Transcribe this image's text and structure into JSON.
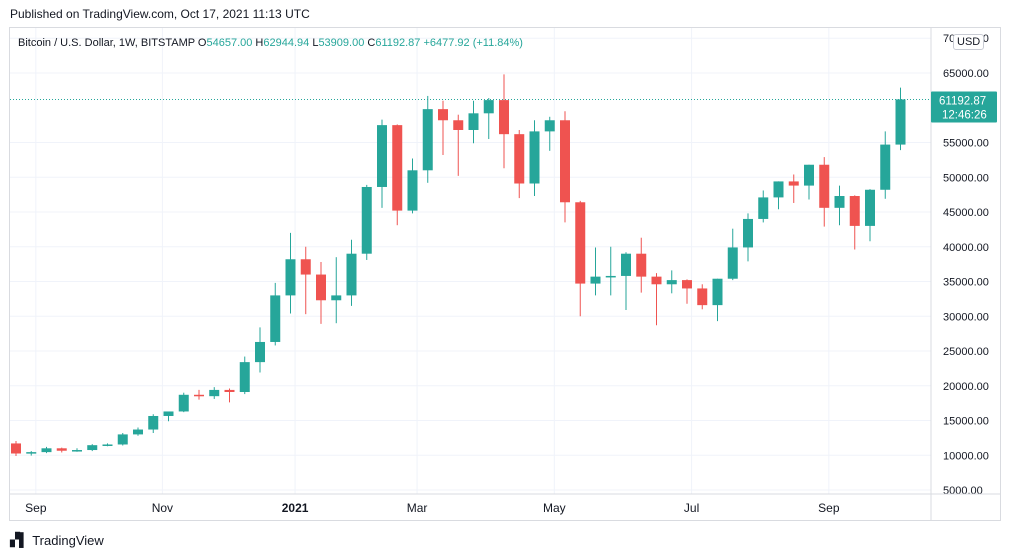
{
  "published_text": "Published on TradingView.com, Oct 17, 2021 11:13 UTC",
  "footer_brand": "TradingView",
  "currency_badge": "USD",
  "colors": {
    "up": "#26a69a",
    "down": "#ef5350",
    "grid": "#f0f3fa",
    "text": "#131722",
    "axis_border": "#d9dbe0"
  },
  "chart_data": {
    "type": "candlestick",
    "legend": {
      "symbol": "Bitcoin / U.S. Dollar, 1W, BITSTAMP",
      "open_label": "O",
      "open": "54657.00",
      "high_label": "H",
      "high": "62944.94",
      "low_label": "L",
      "low": "53909.00",
      "close_label": "C",
      "close": "61192.87",
      "change": "+6477.92 (+11.84%)"
    },
    "y_axis": {
      "ticks": [
        70000,
        65000,
        55000,
        50000,
        45000,
        40000,
        35000,
        30000,
        25000,
        20000,
        15000,
        10000,
        5000
      ],
      "tick_labels": [
        "70000.00",
        "65000.00",
        "55000.00",
        "50000.00",
        "45000.00",
        "40000.00",
        "35000.00",
        "30000.00",
        "25000.00",
        "20000.00",
        "15000.00",
        "10000.00",
        "5000.00"
      ],
      "range": [
        5000,
        70000
      ]
    },
    "x_axis": {
      "labels": [
        {
          "text": "Sep",
          "bar": 1.3,
          "bold": false
        },
        {
          "text": "Nov",
          "bar": 9.6,
          "bold": false
        },
        {
          "text": "2021",
          "bar": 18.3,
          "bold": true
        },
        {
          "text": "Mar",
          "bar": 26.3,
          "bold": false
        },
        {
          "text": "May",
          "bar": 35.3,
          "bold": false
        },
        {
          "text": "Jul",
          "bar": 44.3,
          "bold": false
        },
        {
          "text": "Sep",
          "bar": 53.3,
          "bold": false
        }
      ]
    },
    "last_price": {
      "label": "61192.87",
      "countdown": "12:46:26",
      "value": 61192.87
    },
    "candles": [
      {
        "o": 11700,
        "h": 12050,
        "l": 9900,
        "c": 10250
      },
      {
        "o": 10250,
        "h": 10600,
        "l": 9950,
        "c": 10450
      },
      {
        "o": 10450,
        "h": 11200,
        "l": 10300,
        "c": 11000
      },
      {
        "o": 11000,
        "h": 11100,
        "l": 10400,
        "c": 10650
      },
      {
        "o": 10650,
        "h": 11000,
        "l": 10500,
        "c": 10750
      },
      {
        "o": 10750,
        "h": 11600,
        "l": 10600,
        "c": 11450
      },
      {
        "o": 11450,
        "h": 11700,
        "l": 11300,
        "c": 11550
      },
      {
        "o": 11550,
        "h": 13200,
        "l": 11400,
        "c": 13000
      },
      {
        "o": 13000,
        "h": 14000,
        "l": 12800,
        "c": 13700
      },
      {
        "o": 13700,
        "h": 15900,
        "l": 13200,
        "c": 15650
      },
      {
        "o": 15650,
        "h": 16300,
        "l": 14900,
        "c": 16300
      },
      {
        "o": 16300,
        "h": 19000,
        "l": 16200,
        "c": 18700
      },
      {
        "o": 18700,
        "h": 19400,
        "l": 18000,
        "c": 18500
      },
      {
        "o": 18500,
        "h": 19800,
        "l": 18100,
        "c": 19400
      },
      {
        "o": 19400,
        "h": 19600,
        "l": 17600,
        "c": 19100
      },
      {
        "o": 19100,
        "h": 24200,
        "l": 18800,
        "c": 23400
      },
      {
        "o": 23400,
        "h": 28400,
        "l": 21900,
        "c": 26300
      },
      {
        "o": 26300,
        "h": 34800,
        "l": 25800,
        "c": 33000
      },
      {
        "o": 33000,
        "h": 42000,
        "l": 30400,
        "c": 38200
      },
      {
        "o": 38200,
        "h": 40000,
        "l": 30300,
        "c": 36000
      },
      {
        "o": 36000,
        "h": 37800,
        "l": 28900,
        "c": 32300
      },
      {
        "o": 32300,
        "h": 38500,
        "l": 29000,
        "c": 33000
      },
      {
        "o": 33000,
        "h": 41000,
        "l": 31500,
        "c": 39000
      },
      {
        "o": 39000,
        "h": 48900,
        "l": 38100,
        "c": 48600
      },
      {
        "o": 48600,
        "h": 58300,
        "l": 45600,
        "c": 57500
      },
      {
        "o": 57500,
        "h": 57600,
        "l": 43100,
        "c": 45200
      },
      {
        "o": 45200,
        "h": 52700,
        "l": 44800,
        "c": 51000
      },
      {
        "o": 51000,
        "h": 61700,
        "l": 49200,
        "c": 59800
      },
      {
        "o": 59800,
        "h": 61000,
        "l": 53200,
        "c": 58200
      },
      {
        "o": 58200,
        "h": 59000,
        "l": 50200,
        "c": 56800
      },
      {
        "o": 56800,
        "h": 61000,
        "l": 54900,
        "c": 59200
      },
      {
        "o": 59200,
        "h": 61400,
        "l": 55500,
        "c": 61100
      },
      {
        "o": 61100,
        "h": 64800,
        "l": 51300,
        "c": 56200
      },
      {
        "o": 56200,
        "h": 56800,
        "l": 47000,
        "c": 49100
      },
      {
        "o": 49100,
        "h": 58200,
        "l": 47300,
        "c": 56600
      },
      {
        "o": 56600,
        "h": 58700,
        "l": 53800,
        "c": 58200
      },
      {
        "o": 58200,
        "h": 59500,
        "l": 43500,
        "c": 46400
      },
      {
        "o": 46400,
        "h": 46600,
        "l": 30000,
        "c": 34700
      },
      {
        "o": 34700,
        "h": 39900,
        "l": 33000,
        "c": 35700
      },
      {
        "o": 35700,
        "h": 40000,
        "l": 33000,
        "c": 35800
      },
      {
        "o": 35800,
        "h": 39200,
        "l": 30900,
        "c": 39000
      },
      {
        "o": 39000,
        "h": 41300,
        "l": 33400,
        "c": 35700
      },
      {
        "o": 35700,
        "h": 36200,
        "l": 28700,
        "c": 34600
      },
      {
        "o": 34600,
        "h": 36600,
        "l": 33300,
        "c": 35200
      },
      {
        "o": 35200,
        "h": 35300,
        "l": 31800,
        "c": 34000
      },
      {
        "o": 34000,
        "h": 34600,
        "l": 31000,
        "c": 31600
      },
      {
        "o": 31600,
        "h": 35400,
        "l": 29300,
        "c": 35400
      },
      {
        "o": 35400,
        "h": 42600,
        "l": 35200,
        "c": 39900
      },
      {
        "o": 39900,
        "h": 44800,
        "l": 37900,
        "c": 44000
      },
      {
        "o": 44000,
        "h": 48100,
        "l": 43500,
        "c": 47100
      },
      {
        "o": 47100,
        "h": 49400,
        "l": 45400,
        "c": 49400
      },
      {
        "o": 49400,
        "h": 50400,
        "l": 46300,
        "c": 48800
      },
      {
        "o": 48800,
        "h": 51800,
        "l": 46800,
        "c": 51800
      },
      {
        "o": 51800,
        "h": 52900,
        "l": 42900,
        "c": 45600
      },
      {
        "o": 45600,
        "h": 48800,
        "l": 43100,
        "c": 47300
      },
      {
        "o": 47300,
        "h": 47400,
        "l": 39600,
        "c": 43000
      },
      {
        "o": 43000,
        "h": 48300,
        "l": 40800,
        "c": 48200
      },
      {
        "o": 48200,
        "h": 56600,
        "l": 46900,
        "c": 54700
      },
      {
        "o": 54700,
        "h": 62900,
        "l": 53900,
        "c": 61200
      }
    ]
  }
}
